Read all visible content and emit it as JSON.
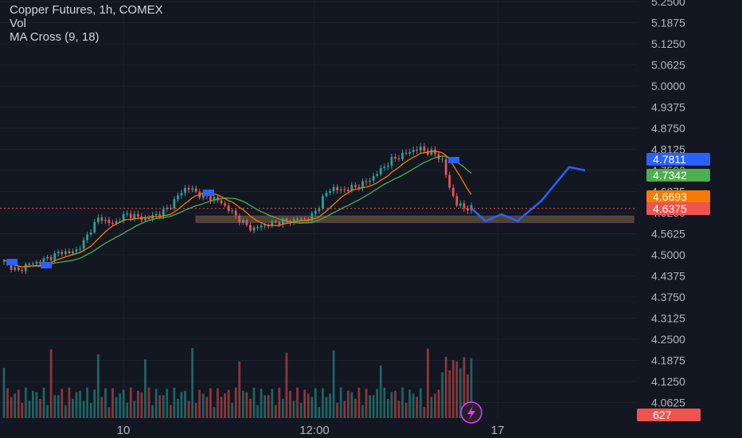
{
  "legend": {
    "title": "Copper Futures, 1h, COMEX",
    "vol": "Vol",
    "ma": "MA Cross (9, 18)"
  },
  "colors": {
    "background": "#131722",
    "up": "#26a69a",
    "down": "#ef5350",
    "ma_fast": "#f57c00",
    "ma_slow": "#4caf50",
    "projection": "#2962ff",
    "zone": "#5d5a1e"
  },
  "chart_data": {
    "type": "candlestick",
    "symbol": "Copper Futures",
    "interval": "1h",
    "exchange": "COMEX",
    "y_ticks": [
      "5.2500",
      "5.1875",
      "5.1250",
      "5.0625",
      "5.0000",
      "4.9375",
      "4.8750",
      "4.8125",
      "4.7500",
      "4.6875",
      "4.6250",
      "4.5625",
      "4.5000",
      "4.4375",
      "4.3750",
      "4.3125",
      "4.2500",
      "4.1875",
      "4.1250",
      "4.0625"
    ],
    "x_labels": [
      "10",
      "12:00",
      "17"
    ],
    "price_badges": [
      {
        "text": "4.7811",
        "color": "#2962ff"
      },
      {
        "text": "4.7342",
        "color": "#4caf50"
      },
      {
        "text": "4.6693",
        "color": "#f57c00"
      },
      {
        "text": "4.6375",
        "color": "#ef5350"
      }
    ],
    "volume_badge": {
      "text": "627",
      "color": "#ef5350"
    },
    "support_zone": [
      4.596,
      4.615
    ],
    "last_price": 4.6375,
    "price_path": [
      4.48,
      4.465,
      4.45,
      4.47,
      4.475,
      4.48,
      4.49,
      4.5,
      4.51,
      4.505,
      4.515,
      4.54,
      4.58,
      4.61,
      4.6,
      4.59,
      4.61,
      4.62,
      4.615,
      4.605,
      4.61,
      4.62,
      4.63,
      4.65,
      4.68,
      4.7,
      4.69,
      4.675,
      4.67,
      4.665,
      4.65,
      4.63,
      4.61,
      4.59,
      4.575,
      4.585,
      4.59,
      4.595,
      4.6,
      4.6,
      4.605,
      4.605,
      4.61,
      4.64,
      4.68,
      4.7,
      4.69,
      4.695,
      4.7,
      4.71,
      4.72,
      4.74,
      4.76,
      4.78,
      4.79,
      4.8,
      4.81,
      4.815,
      4.805,
      4.8,
      4.78,
      4.7,
      4.65,
      4.64,
      4.6375
    ],
    "projection": [
      4.6375,
      4.6,
      4.62,
      4.6,
      4.66,
      4.76,
      4.75
    ],
    "volume_scale": "relative"
  }
}
